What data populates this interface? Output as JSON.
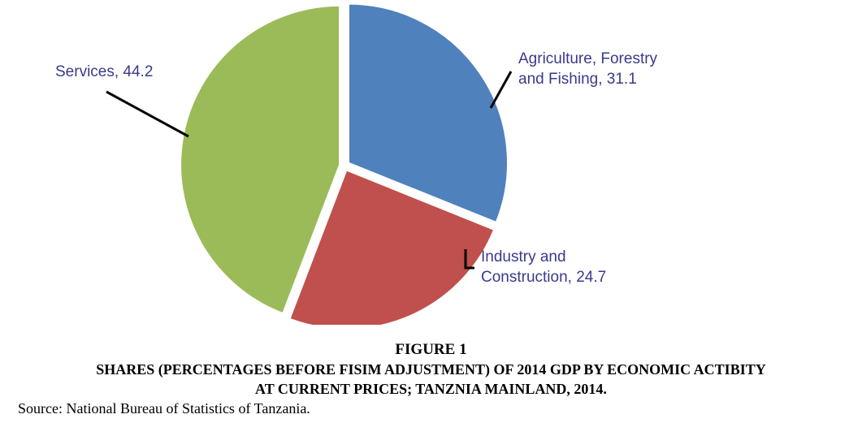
{
  "chart_data": {
    "type": "pie",
    "slices": [
      {
        "label_line1": "Agriculture, Forestry",
        "label_line2": "and Fishing, 31.1",
        "category": "Agriculture, Forestry and Fishing",
        "value": 31.1,
        "color": "#4f81bd"
      },
      {
        "label_line1": "Industry and",
        "label_line2": "Construction, 24.7",
        "category": "Industry and Construction",
        "value": 24.7,
        "color": "#c0504d"
      },
      {
        "label_line1": "Services, 44.2",
        "label_line2": "",
        "category": "Services",
        "value": 44.2,
        "color": "#9bbb59"
      }
    ],
    "label_color": "#3a3a8c"
  },
  "caption": {
    "figure_number": "FIGURE 1",
    "title_line1": "SHARES (PERCENTAGES BEFORE FISIM ADJUSTMENT) OF 2014 GDP BY ECONOMIC ACTIBITY",
    "title_line2": "AT CURRENT PRICES; TANZNIA MAINLAND, 2014.",
    "source": "Source: National Bureau of Statistics of Tanzania."
  }
}
